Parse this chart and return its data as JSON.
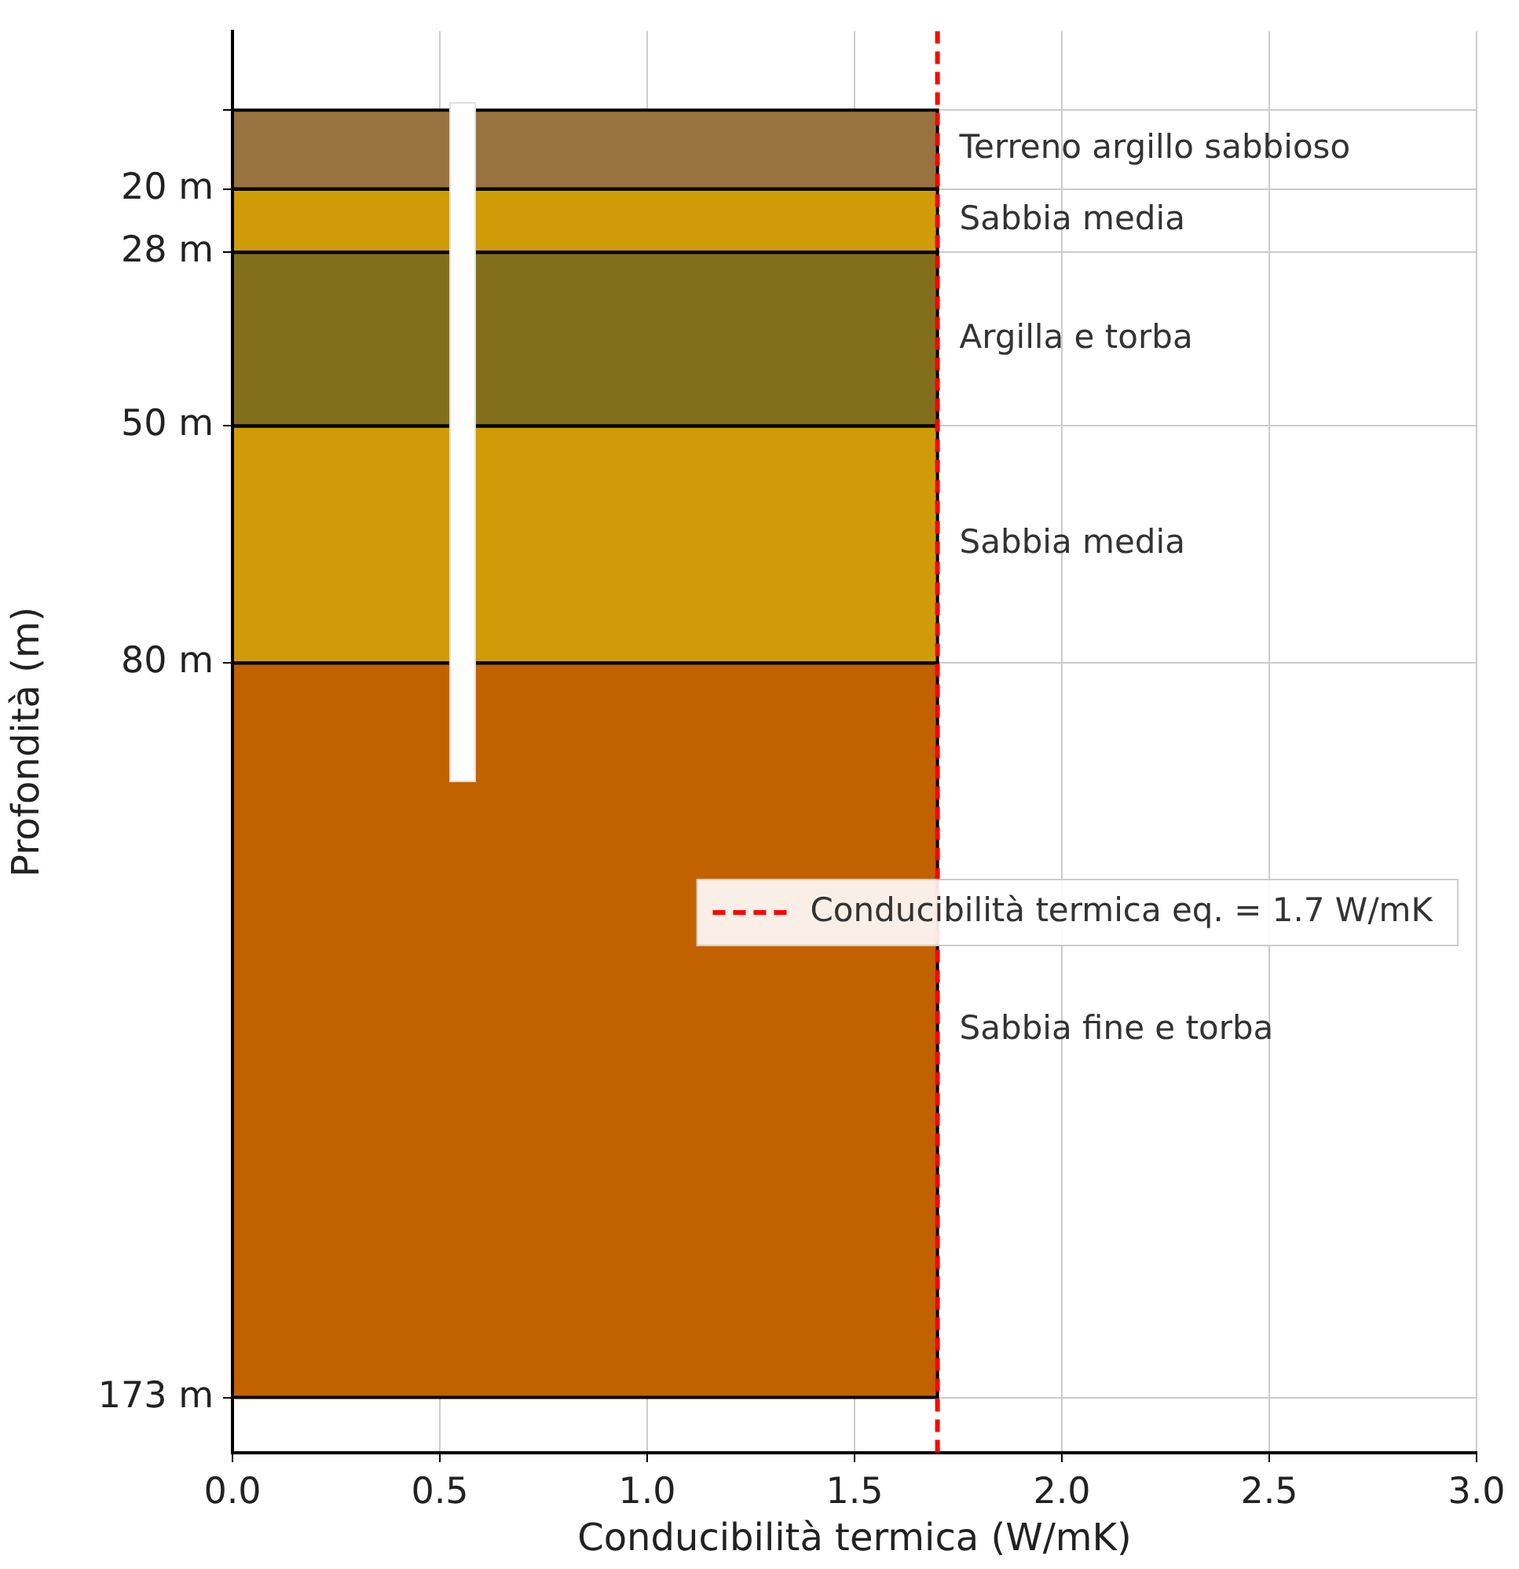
{
  "chart_data": {
    "type": "line",
    "marker": "none",
    "series": [
      {
        "name": "Conducibilità termica eq. = 1.7 W/mK",
        "color": "#ff0000",
        "line_style": "dashed",
        "x": [
          1.7,
          1.7
        ],
        "values": [
          0,
          180
        ]
      }
    ],
    "xlabel": "Conducibilità termica (W/mK)",
    "ylabel": "Profondità (m)",
    "xlim": [
      0,
      3
    ],
    "xticks": [
      {
        "value": 0,
        "label": "0.0"
      },
      {
        "value": 0.5,
        "label": "0.5"
      },
      {
        "value": 1,
        "label": "1.0"
      },
      {
        "value": 1.5,
        "label": "1.5"
      },
      {
        "value": 2,
        "label": "2.0"
      },
      {
        "value": 2.5,
        "label": "2.5"
      },
      {
        "value": 3,
        "label": "3.0"
      }
    ],
    "ylim": [
      180,
      0
    ],
    "yticks": [
      {
        "value": 10,
        "label": null
      },
      {
        "value": 20,
        "label": "20 m"
      },
      {
        "value": 28,
        "label": "28 m"
      },
      {
        "value": 50,
        "label": "50 m"
      },
      {
        "value": 80,
        "label": "80 m"
      },
      {
        "value": 173,
        "label": "173 m"
      }
    ],
    "grid": true,
    "legend": "right",
    "bands": [
      {
        "axis": "y",
        "from": 10,
        "to": 20,
        "label": "Terreno argillo sabbioso",
        "color": "#987340"
      },
      {
        "axis": "y",
        "from": 20,
        "to": 28,
        "label": "Sabbia media",
        "color": "#cf9c07"
      },
      {
        "axis": "y",
        "from": 28,
        "to": 50,
        "label": "Argilla e torba",
        "color": "#836f1b"
      },
      {
        "axis": "y",
        "from": 50,
        "to": 80,
        "label": "Sabbia media",
        "color": "#cf9c07"
      },
      {
        "axis": "y",
        "from": 80,
        "to": 173,
        "label": "Sabbia fine e torba",
        "color": "#c26100"
      }
    ]
  }
}
